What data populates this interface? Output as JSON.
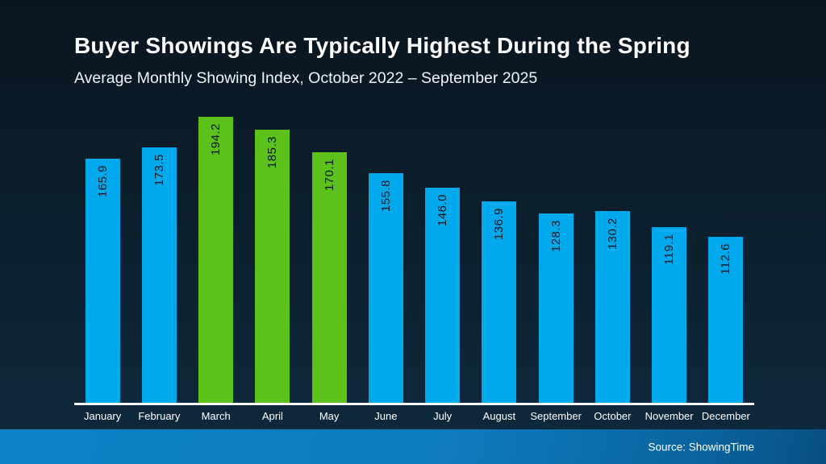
{
  "slide": {
    "title": "Buyer Showings Are Typically Highest During the Spring",
    "subtitle": "Average Monthly Showing Index, October 2022 – September 2025",
    "source": "Source: ShowingTime"
  },
  "colors": {
    "bar_default": "#00a8ec",
    "bar_highlight": "#5cc119",
    "background_top": "#0a1520",
    "background_bottom": "#0e2a3e",
    "footer_bar": "#0d7bbd",
    "axis_line": "#ffffff",
    "value_label": "#04161f",
    "month_label": "#ffffff"
  },
  "chart_data": {
    "type": "bar",
    "title": "Buyer Showings Are Typically Highest During the Spring",
    "subtitle": "Average Monthly Showing Index, October 2022 – September 2025",
    "categories": [
      "January",
      "February",
      "March",
      "April",
      "May",
      "June",
      "July",
      "August",
      "September",
      "October",
      "November",
      "December"
    ],
    "values": [
      165.9,
      173.5,
      194.2,
      185.3,
      170.1,
      155.8,
      146.0,
      136.9,
      128.3,
      130.2,
      119.1,
      112.6
    ],
    "value_labels": [
      "165.9",
      "173.5",
      "194.2",
      "185.3",
      "170.1",
      "155.8",
      "146.0",
      "136.9",
      "128.3",
      "130.2",
      "119.1",
      "112.6"
    ],
    "highlighted_categories": [
      "March",
      "April",
      "May"
    ],
    "xlabel": "",
    "ylabel": "",
    "ylim": [
      0,
      200
    ],
    "grid": false,
    "legend": false,
    "value_labels_rotated": true,
    "source": "Source: ShowingTime"
  }
}
